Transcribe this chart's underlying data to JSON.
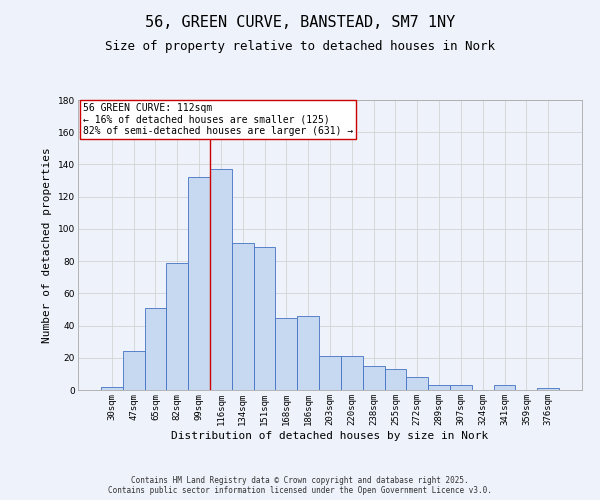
{
  "title_line1": "56, GREEN CURVE, BANSTEAD, SM7 1NY",
  "title_line2": "Size of property relative to detached houses in Nork",
  "xlabel": "Distribution of detached houses by size in Nork",
  "ylabel": "Number of detached properties",
  "categories": [
    "30sqm",
    "47sqm",
    "65sqm",
    "82sqm",
    "99sqm",
    "116sqm",
    "134sqm",
    "151sqm",
    "168sqm",
    "186sqm",
    "203sqm",
    "220sqm",
    "238sqm",
    "255sqm",
    "272sqm",
    "289sqm",
    "307sqm",
    "324sqm",
    "341sqm",
    "359sqm",
    "376sqm"
  ],
  "values": [
    2,
    24,
    51,
    79,
    132,
    137,
    91,
    89,
    45,
    46,
    21,
    21,
    15,
    13,
    8,
    3,
    3,
    0,
    3,
    0,
    1
  ],
  "bar_color": "#c6d9f1",
  "bar_edge_color": "#4472c4",
  "grid_color": "#d3d3d3",
  "background_color": "#eef2fa",
  "vline_x_index": 4.5,
  "vline_color": "#cc0000",
  "annotation_text": "56 GREEN CURVE: 112sqm\n← 16% of detached houses are smaller (125)\n82% of semi-detached houses are larger (631) →",
  "annotation_box_color": "#ffffff",
  "annotation_edge_color": "#cc0000",
  "ylim": [
    0,
    180
  ],
  "yticks": [
    0,
    20,
    40,
    60,
    80,
    100,
    120,
    140,
    160,
    180
  ],
  "footer_line1": "Contains HM Land Registry data © Crown copyright and database right 2025.",
  "footer_line2": "Contains public sector information licensed under the Open Government Licence v3.0.",
  "title_fontsize": 11,
  "subtitle_fontsize": 9,
  "tick_fontsize": 6.5,
  "label_fontsize": 8,
  "annotation_fontsize": 7,
  "footer_fontsize": 5.5
}
